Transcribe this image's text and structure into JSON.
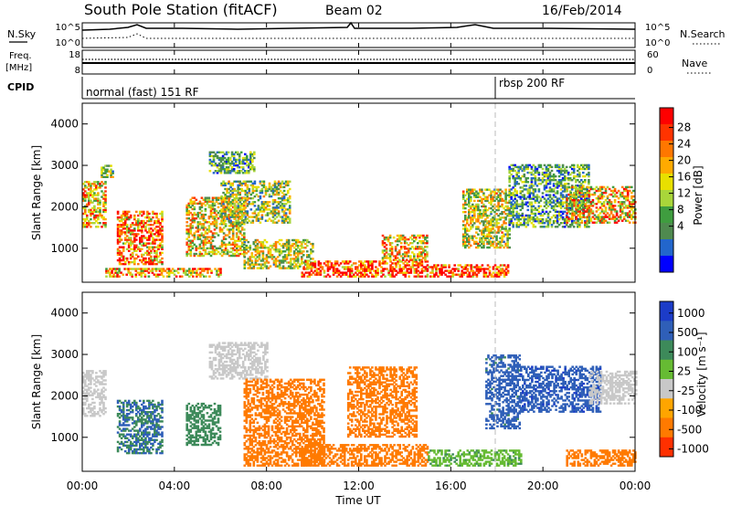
{
  "header": {
    "station": "South Pole Station (fitACF)",
    "beam": "Beam 02",
    "date": "16/Feb/2014"
  },
  "top_panels": {
    "nsky_label": "N.Sky",
    "nsearch_label": "N.Search",
    "nsky_ticks": [
      "10^5",
      "10^0"
    ],
    "freq_label_1": "Freq.",
    "freq_label_2": "[MHz]",
    "freq_ticks": [
      "18",
      "8"
    ],
    "nave_label": "Nave",
    "nave_ticks": [
      "60",
      "0"
    ],
    "cpid_label": "CPID",
    "cpid_mode_1": "normal (fast) 151 RF",
    "cpid_mode_2": "rbsp 200 RF"
  },
  "x_axis": {
    "label": "Time UT",
    "ticks": [
      "00:00",
      "04:00",
      "08:00",
      "12:00",
      "16:00",
      "20:00",
      "00:00"
    ]
  },
  "power_colorbar": {
    "label": "Power [dB]",
    "ticks": [
      "28",
      "24",
      "20",
      "16",
      "12",
      "8",
      "4"
    ],
    "colors": [
      "#ff0000",
      "#ff3300",
      "#ff7700",
      "#ffaa00",
      "#e8e000",
      "#a9d63a",
      "#3f9d3f",
      "#4f8a4f",
      "#2266cc",
      "#0000ff"
    ]
  },
  "velocity_colorbar": {
    "label": "Velocity [m s⁻¹]",
    "ticks": [
      "1000",
      "500",
      "100",
      "25",
      "-25",
      "-100",
      "-500",
      "-1000"
    ],
    "colors": [
      "#1c3cc8",
      "#2f5fb8",
      "#3d8a5a",
      "#66bb33",
      "#c8c8c8",
      "#ffa500",
      "#ff7a00",
      "#ff3000"
    ]
  },
  "chart_data": [
    {
      "type": "heatmap",
      "title": "Power",
      "xlabel": "Time UT",
      "ylabel": "Slant Range [km]",
      "xlim": [
        "00:00",
        "00:00"
      ],
      "ylim": [
        180,
        4500
      ],
      "y_ticks": [
        1000,
        2000,
        3000,
        4000
      ],
      "color_label": "Power [dB]",
      "color_range": [
        0,
        32
      ],
      "echo_regions": [
        {
          "t_start": 0.0,
          "t_end": 1.0,
          "r_min": 1500,
          "r_max": 2600,
          "value": 20
        },
        {
          "t_start": 0.8,
          "t_end": 1.3,
          "r_min": 2700,
          "r_max": 3000,
          "value": 14
        },
        {
          "t_start": 1.5,
          "t_end": 3.5,
          "r_min": 600,
          "r_max": 1900,
          "value": 24
        },
        {
          "t_start": 1.0,
          "t_end": 6.0,
          "r_min": 300,
          "r_max": 500,
          "value": 22
        },
        {
          "t_start": 4.5,
          "t_end": 7.0,
          "r_min": 800,
          "r_max": 2200,
          "value": 18
        },
        {
          "t_start": 5.5,
          "t_end": 7.5,
          "r_min": 2800,
          "r_max": 3300,
          "value": 10
        },
        {
          "t_start": 6.0,
          "t_end": 9.0,
          "r_min": 1600,
          "r_max": 2600,
          "value": 14
        },
        {
          "t_start": 7.0,
          "t_end": 10.0,
          "r_min": 500,
          "r_max": 1200,
          "value": 16
        },
        {
          "t_start": 9.5,
          "t_end": 15.0,
          "r_min": 300,
          "r_max": 700,
          "value": 28
        },
        {
          "t_start": 13.0,
          "t_end": 15.0,
          "r_min": 700,
          "r_max": 1300,
          "value": 20
        },
        {
          "t_start": 15.0,
          "t_end": 18.5,
          "r_min": 300,
          "r_max": 600,
          "value": 28
        },
        {
          "t_start": 16.5,
          "t_end": 18.5,
          "r_min": 1000,
          "r_max": 2400,
          "value": 16
        },
        {
          "t_start": 18.5,
          "t_end": 22.0,
          "r_min": 1500,
          "r_max": 3000,
          "value": 10
        },
        {
          "t_start": 21.0,
          "t_end": 24.0,
          "r_min": 1600,
          "r_max": 2500,
          "value": 20
        }
      ]
    },
    {
      "type": "heatmap",
      "title": "Velocity",
      "xlabel": "Time UT",
      "ylabel": "Slant Range [km]",
      "xlim": [
        "00:00",
        "00:00"
      ],
      "ylim": [
        180,
        4500
      ],
      "y_ticks": [
        1000,
        2000,
        3000,
        4000
      ],
      "color_label": "Velocity [m s⁻¹]",
      "color_range": [
        -1000,
        1000
      ],
      "echo_regions": [
        {
          "t_start": 0.0,
          "t_end": 1.0,
          "r_min": 1500,
          "r_max": 2600,
          "value": 0
        },
        {
          "t_start": 1.5,
          "t_end": 3.5,
          "r_min": 600,
          "r_max": 1900,
          "value": 500
        },
        {
          "t_start": 4.5,
          "t_end": 6.0,
          "r_min": 800,
          "r_max": 1800,
          "value": 300
        },
        {
          "t_start": 5.5,
          "t_end": 8.0,
          "r_min": 2400,
          "r_max": 3300,
          "value": 0
        },
        {
          "t_start": 7.0,
          "t_end": 10.5,
          "r_min": 300,
          "r_max": 2400,
          "value": -200
        },
        {
          "t_start": 9.5,
          "t_end": 15.0,
          "r_min": 300,
          "r_max": 800,
          "value": -150
        },
        {
          "t_start": 11.5,
          "t_end": 14.5,
          "r_min": 1000,
          "r_max": 2700,
          "value": -300
        },
        {
          "t_start": 15.0,
          "t_end": 19.0,
          "r_min": 300,
          "r_max": 700,
          "value": 80
        },
        {
          "t_start": 17.5,
          "t_end": 19.0,
          "r_min": 1200,
          "r_max": 3000,
          "value": 700
        },
        {
          "t_start": 19.0,
          "t_end": 22.5,
          "r_min": 1600,
          "r_max": 2700,
          "value": 800
        },
        {
          "t_start": 22.0,
          "t_end": 24.0,
          "r_min": 1800,
          "r_max": 2600,
          "value": 0
        },
        {
          "t_start": 21.0,
          "t_end": 24.0,
          "r_min": 300,
          "r_max": 700,
          "value": -200
        }
      ]
    }
  ]
}
